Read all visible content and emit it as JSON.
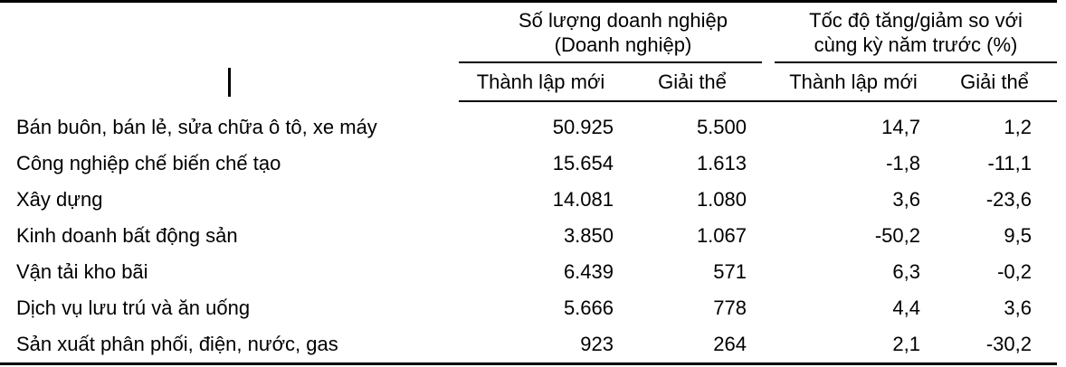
{
  "table": {
    "group_headers": [
      {
        "line1": "Số lượng doanh nghiệp",
        "line2": "(Doanh nghiệp)"
      },
      {
        "line1": "Tốc độ tăng/giảm so với",
        "line2": "cùng kỳ năm trước (%)"
      }
    ],
    "sub_headers": [
      "Thành lập mới",
      "Giải thể",
      "Thành lập mới",
      "Giải thể"
    ],
    "rows": [
      {
        "label": "Bán buôn, bán lẻ, sửa chữa ô tô, xe máy",
        "values": [
          "50.925",
          "5.500",
          "14,7",
          "1,2"
        ]
      },
      {
        "label": "Công nghiệp chế biến chế tạo",
        "values": [
          "15.654",
          "1.613",
          "-1,8",
          "-11,1"
        ]
      },
      {
        "label": "Xây dựng",
        "values": [
          "14.081",
          "1.080",
          "3,6",
          "-23,6"
        ]
      },
      {
        "label": "Kinh doanh bất động sản",
        "values": [
          "3.850",
          "1.067",
          "-50,2",
          "9,5"
        ]
      },
      {
        "label": "Vận tải kho bãi",
        "values": [
          "6.439",
          "571",
          "6,3",
          "-0,2"
        ]
      },
      {
        "label": "Dịch vụ lưu trú và ăn uống",
        "values": [
          "5.666",
          "778",
          "4,4",
          "3,6"
        ]
      },
      {
        "label": "Sản xuất phân phối, điện, nước, gas",
        "values": [
          "923",
          "264",
          "2,1",
          "-30,2"
        ]
      }
    ],
    "colors": {
      "text": "#000000",
      "rule": "#000000",
      "background": "#ffffff"
    }
  }
}
